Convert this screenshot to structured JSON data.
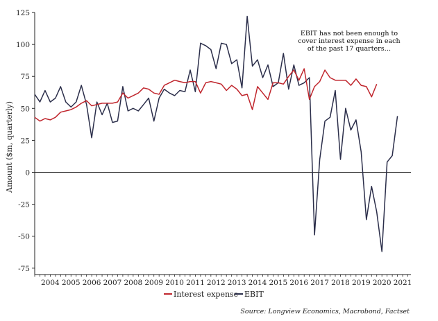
{
  "chart_data": {
    "type": "line",
    "title": "",
    "xlabel": "",
    "ylabel": "Amount ($m, quarterly)",
    "ylim": [
      -80,
      125
    ],
    "yticks": [
      125,
      100,
      75,
      50,
      25,
      0,
      -25,
      -50,
      -75
    ],
    "xticks": [
      "2004",
      "2005",
      "2006",
      "2007",
      "2008",
      "2009",
      "2010",
      "2011",
      "2012",
      "2013",
      "2014",
      "2015",
      "2016",
      "2017",
      "2018",
      "2019",
      "2020",
      "2021"
    ],
    "grid": false,
    "zero_line": true,
    "x_start_year": 2003.75,
    "x_step_years": 0.25,
    "annotation": "EBIT has not been enough to cover interest expense in each of the past 17 quarters…",
    "source": "Source: Longview Economics, Macrobond, Factset",
    "legend_position": "bottom",
    "series": [
      {
        "name": "Interest expense",
        "color": "#c0262d",
        "values": [
          43,
          40,
          42,
          41,
          43,
          47,
          48,
          49,
          51,
          54,
          56,
          52,
          53,
          54,
          54,
          54,
          55,
          62,
          58,
          60,
          62,
          66,
          65,
          62,
          61,
          68,
          70,
          72,
          71,
          70,
          71,
          71,
          62,
          70,
          71,
          70,
          69,
          64,
          68,
          65,
          60,
          61,
          49,
          67,
          62,
          57,
          70,
          70,
          69,
          75,
          80,
          72,
          81,
          57,
          67,
          71,
          80,
          74,
          72,
          72,
          72,
          68,
          73,
          68,
          67,
          59,
          69
        ]
      },
      {
        "name": "EBIT",
        "color": "#2b2e4a",
        "values": [
          61,
          55,
          64,
          55,
          58,
          67,
          55,
          51,
          55,
          68,
          53,
          27,
          55,
          45,
          54,
          39,
          40,
          67,
          48,
          50,
          48,
          53,
          58,
          40,
          58,
          65,
          62,
          60,
          64,
          63,
          80,
          63,
          101,
          99,
          96,
          81,
          101,
          100,
          85,
          88,
          66,
          122,
          83,
          88,
          74,
          84,
          67,
          70,
          93,
          65,
          84,
          68,
          70,
          74,
          -49,
          10,
          40,
          43,
          64,
          10,
          50,
          33,
          41,
          16,
          -37,
          -11,
          -31,
          -62,
          8,
          13,
          44
        ]
      }
    ]
  }
}
